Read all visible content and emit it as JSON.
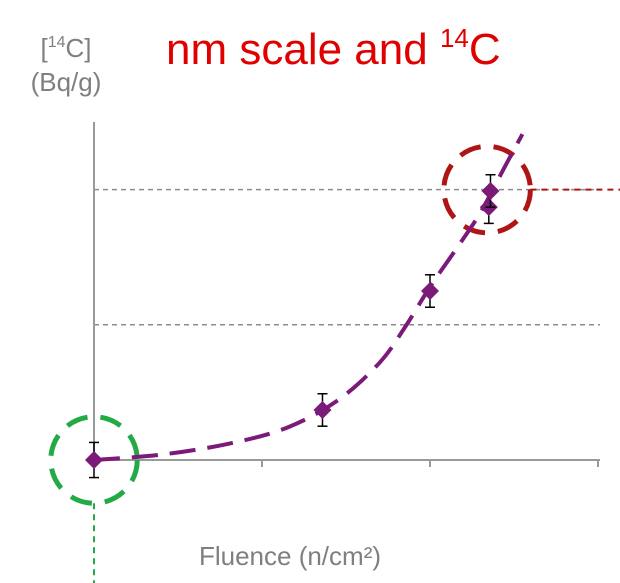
{
  "title": {
    "prefix": "nm scale and ",
    "superscript": "14",
    "suffix": "C"
  },
  "chart_data": {
    "type": "scatter",
    "title": "nm scale and 14C",
    "ylabel": "[14C] (Bq/g)",
    "ylabel_parts": {
      "open": "[",
      "sup": "14",
      "close": "C]",
      "unit": "(Bq/g)"
    },
    "xlabel": "Fluence (n/cm²)",
    "xlim": [
      0,
      3
    ],
    "ylim": [
      0,
      2.5
    ],
    "x_ticks": [
      0,
      1,
      2,
      3
    ],
    "y_gridlines": [
      1,
      2
    ],
    "grid": "dashed-horizontal",
    "series": [
      {
        "points": [
          {
            "x": 0.0,
            "y": 0.0,
            "err": 0.13
          },
          {
            "x": 1.36,
            "y": 0.37,
            "err": 0.12
          },
          {
            "x": 2.0,
            "y": 1.25,
            "err": 0.12
          },
          {
            "x": 2.35,
            "y": 1.87,
            "err": 0.12
          },
          {
            "x": 2.36,
            "y": 1.99,
            "err": 0.12
          }
        ],
        "color": "#7b1a78"
      }
    ],
    "trend_line": {
      "style": "dashed",
      "color": "#7b1a78",
      "points": [
        [
          0,
          0
        ],
        [
          0.4,
          0.04
        ],
        [
          0.8,
          0.12
        ],
        [
          1.15,
          0.24
        ],
        [
          1.45,
          0.44
        ],
        [
          1.7,
          0.72
        ],
        [
          1.85,
          0.98
        ],
        [
          2.0,
          1.28
        ],
        [
          2.15,
          1.55
        ],
        [
          2.3,
          1.83
        ],
        [
          2.45,
          2.18
        ],
        [
          2.55,
          2.41
        ]
      ]
    },
    "annotations": [
      {
        "kind": "dashed-circle",
        "color": "#22aa44",
        "x": 0.0,
        "y": 0.0,
        "r": 0.32,
        "leader": "down"
      },
      {
        "kind": "dashed-circle",
        "color": "#b01515",
        "x": 2.34,
        "y": 2.0,
        "r": 0.32,
        "leader": "right"
      }
    ]
  }
}
